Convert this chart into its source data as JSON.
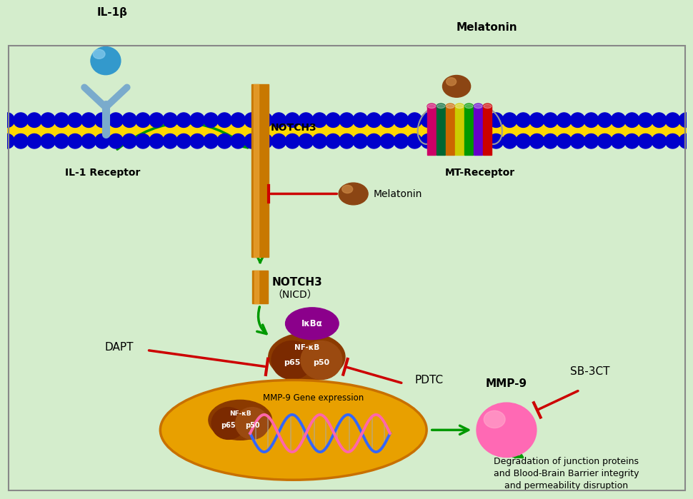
{
  "bg_color": "#d4edcc",
  "green_arrow_color": "#009900",
  "red_color": "#cc0000",
  "notch3_bar_color": "#c87800",
  "notch3_highlight_color": "#e8a030",
  "membrane_blue": "#0000cc",
  "membrane_yellow": "#FFD700",
  "nucleus_color": "#e8a000",
  "nucleus_border": "#c87000",
  "nfkb_color": "#8B3A00",
  "ikba_color": "#8B008B",
  "mmp9_color": "#ff69b4",
  "labels": {
    "IL1b": "IL-1β",
    "IL1_receptor": "IL-1 Receptor",
    "NOTCH3": "NOTCH3",
    "NOTCH3_NICD_line1": "NOTCH3",
    "NOTCH3_NICD_line2": "（NICD）",
    "Melatonin": "Melatonin",
    "MT_Receptor": "MT-Receptor",
    "DAPT": "DAPT",
    "PDTC": "PDTC",
    "SBCT": "SB-3CT",
    "MMP9": "MMP-9",
    "MMP9_gene": "MMP-9 Gene expression",
    "BBB_line1": "Degradation of junction proteins",
    "BBB_line2": "and Blood-Brain Barrier integrity",
    "BBB_line3": "and permeability disruption",
    "NF_kB": "NF-κB",
    "p65": "p65",
    "p50": "p50",
    "IkBa": "IκBα"
  }
}
